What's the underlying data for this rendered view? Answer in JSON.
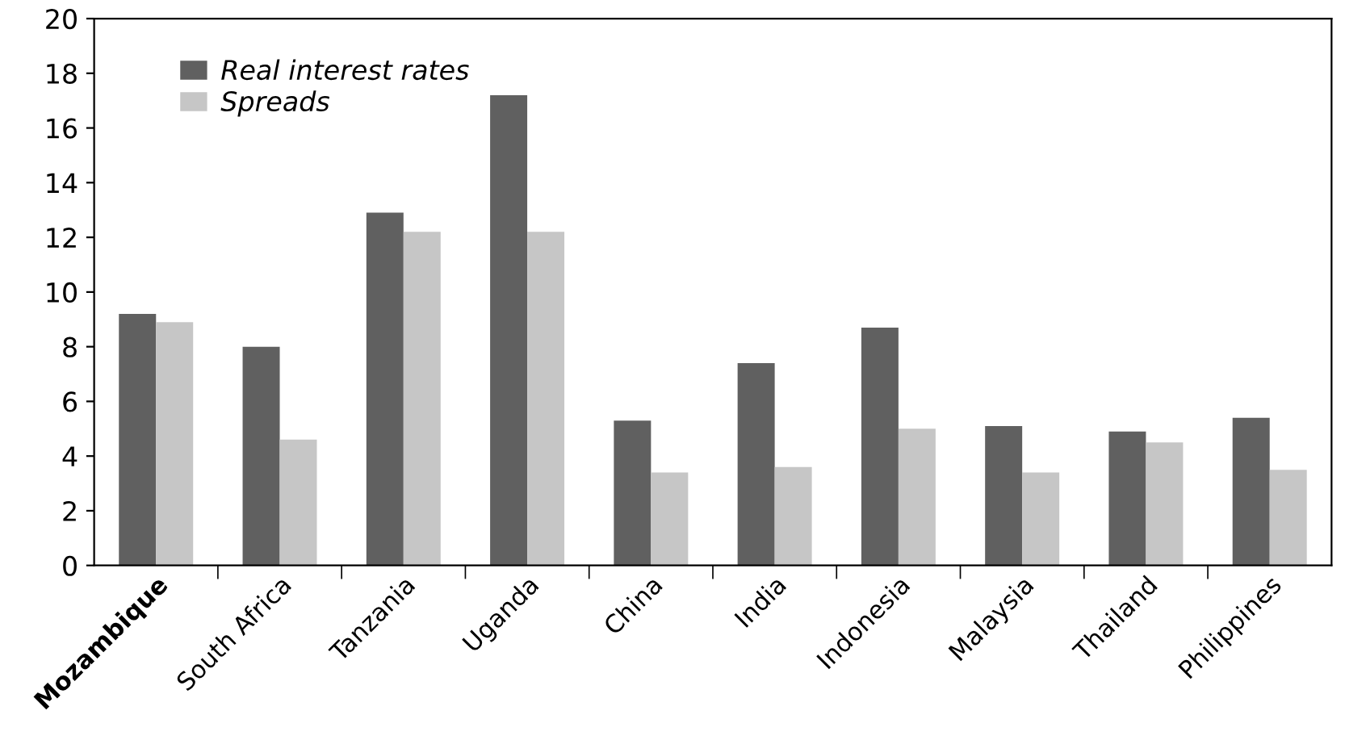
{
  "chart_data": {
    "type": "bar",
    "categories": [
      "Mozambique",
      "South Africa",
      "Tanzania",
      "Uganda",
      "China",
      "India",
      "Indonesia",
      "Malaysia",
      "Thailand",
      "Philippines"
    ],
    "series": [
      {
        "name": "Real interest rates",
        "color": "#606060",
        "values": [
          9.2,
          8.0,
          12.9,
          17.2,
          5.3,
          7.4,
          8.7,
          5.1,
          4.9,
          5.4
        ]
      },
      {
        "name": "Spreads",
        "color": "#c6c6c6",
        "values": [
          8.9,
          4.6,
          12.2,
          12.2,
          3.4,
          3.6,
          5.0,
          3.4,
          4.5,
          3.5
        ]
      }
    ],
    "ylim": [
      0,
      20
    ],
    "yticks": [
      0,
      2,
      4,
      6,
      8,
      10,
      12,
      14,
      16,
      18,
      20
    ],
    "legend": "top left",
    "grid": false
  }
}
